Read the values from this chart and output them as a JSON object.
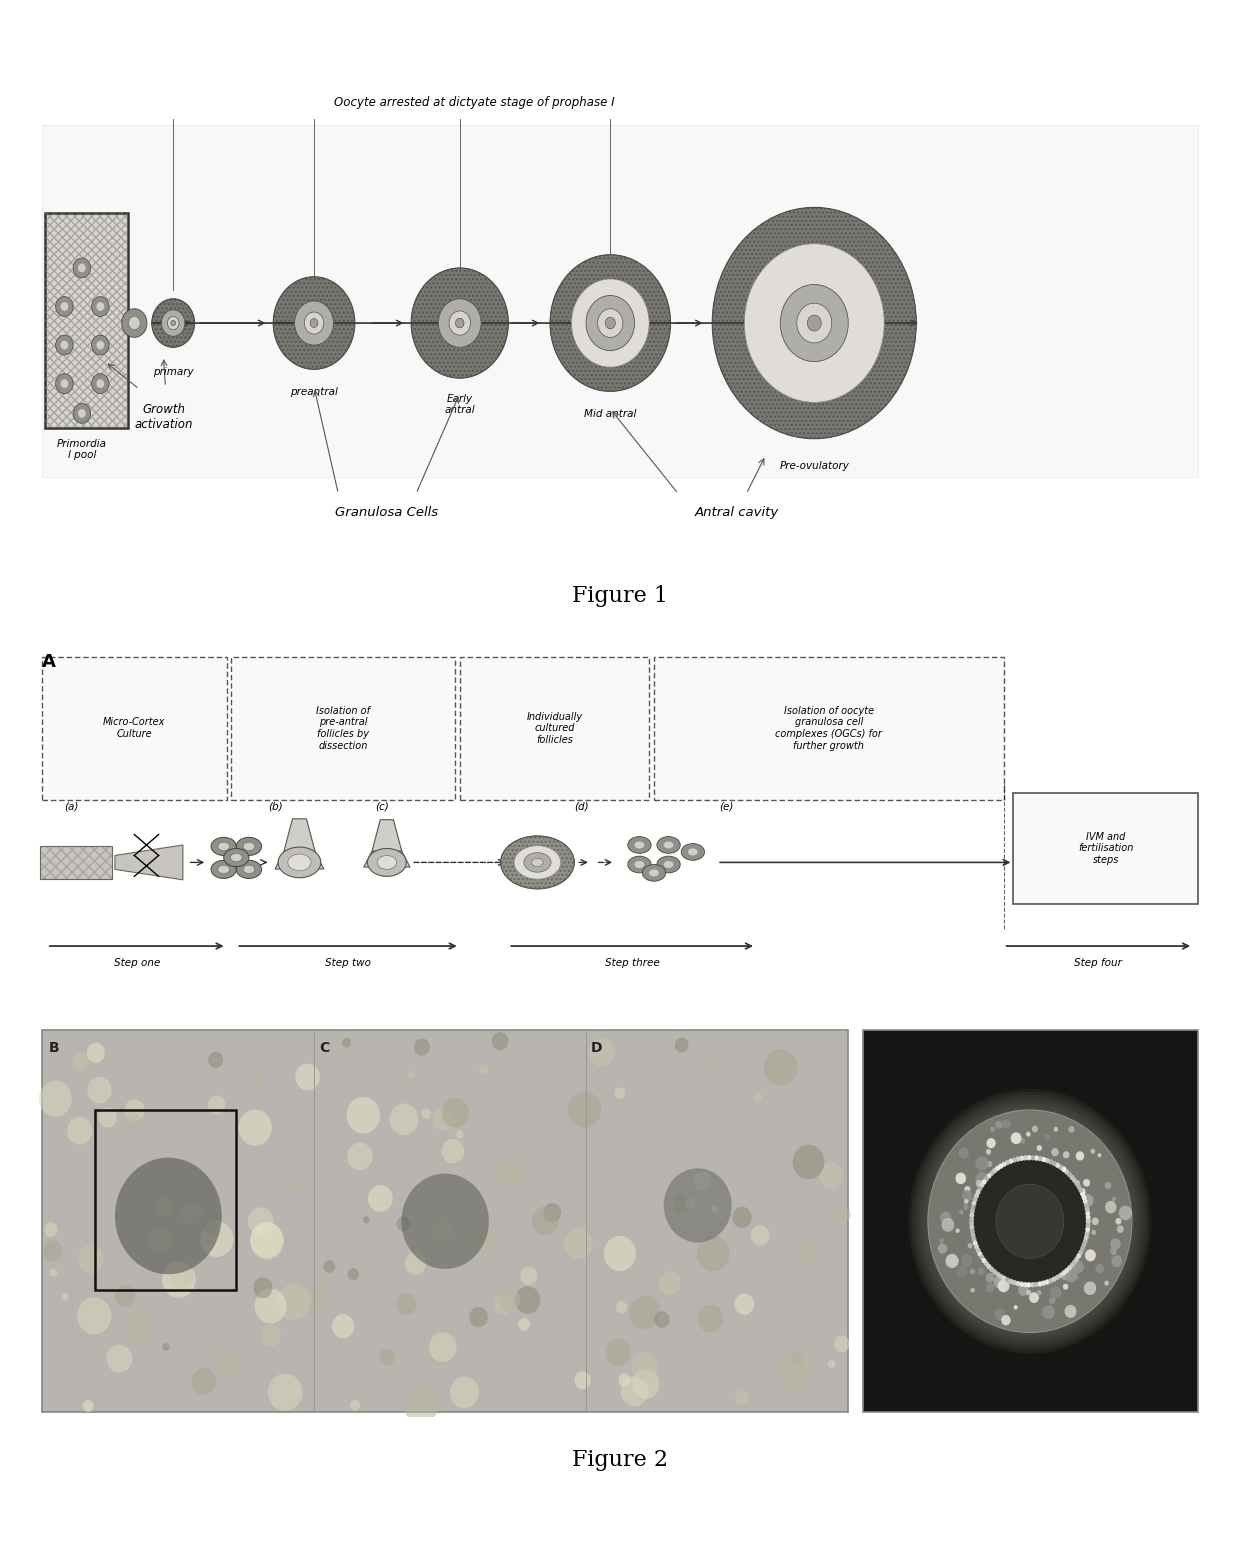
{
  "figure1_title": "Figure 1",
  "figure2_title": "Figure 2",
  "fig1_label": "Oocyte arrested at dictyate stage of prophase I",
  "fig1_stages": [
    "Primordia\nl pool",
    "primary",
    "preantral",
    "Early\nantral",
    "Mid antral",
    "Pre-ovulatory"
  ],
  "fig1_annotation1": "Growth\nactivation",
  "fig1_annotation2": "Granulosa Cells",
  "fig1_annotation3": "Antral cavity",
  "fig2_label_A": "A",
  "fig2_boxes_top": [
    "Micro-Cortex\nCulture",
    "Isolation of\npre-antral\nfollicles by\ndissection",
    "Individually\ncultured\nfollicles",
    "Isolation of oocyte\ngranulosa cell\ncomplexes (OGCs) for\nfurther growth"
  ],
  "fig2_box_right": "IVM and\nfertilisation\nsteps",
  "fig2_steps": [
    "Step one",
    "Step two",
    "Step three",
    "Step four"
  ],
  "fig2_step_labels": [
    "(a)",
    "(b)",
    "(c)",
    "(d)",
    "(e)"
  ],
  "fig2_label_B": "B",
  "fig2_label_C": "C",
  "fig2_label_D": "D",
  "background_color": "#ffffff",
  "text_color": "#000000",
  "fig1_bg_color": "#f0eeee",
  "follicle_outer_color": "#888880",
  "follicle_mid_color": "#c8c8c0",
  "follicle_inner_color": "#e8e8e0",
  "follicle_nucleus_color": "#a8a8a0",
  "pool_bg_color": "#d8d4d0",
  "fig2_panel_bg": "#b8b4b0",
  "fig2_dark_panel_bg": "#1a1a18"
}
